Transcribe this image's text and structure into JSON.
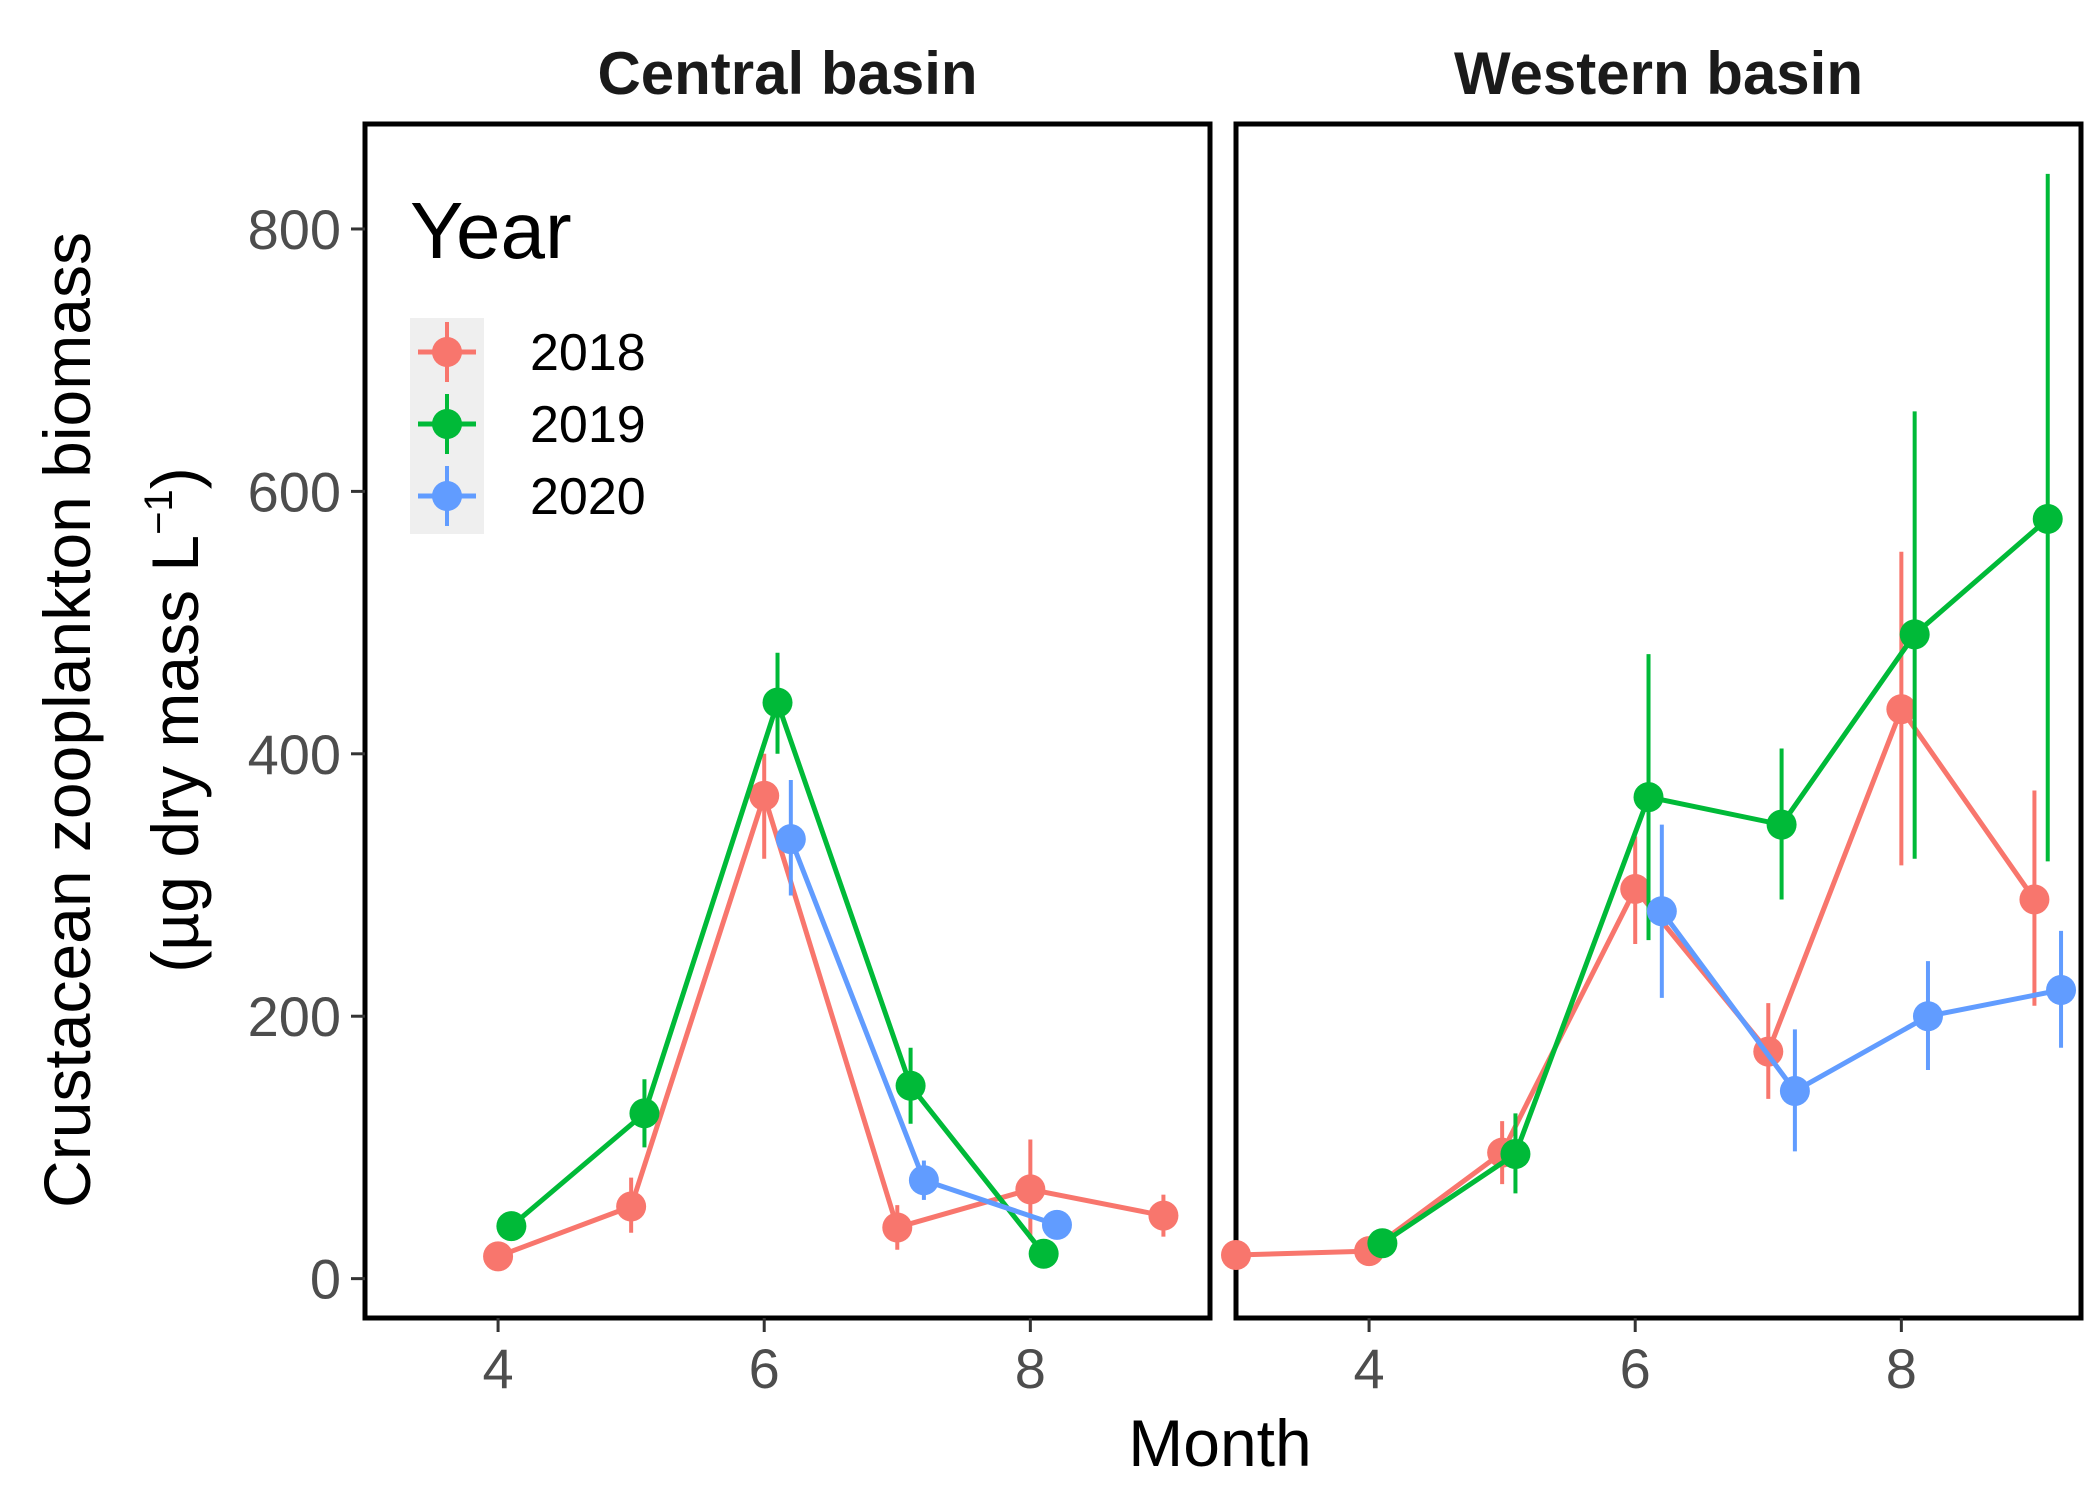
{
  "chart_data": {
    "type": "line",
    "xlabel": "Month",
    "ylabel_line1": "Crustacean zooplankton biomass",
    "ylabel_line2_prefix": "(µg dry mass L",
    "ylabel_line2_sup": "−1",
    "ylabel_line2_suffix": ")",
    "xlim": [
      3.0,
      9.35
    ],
    "ylim": [
      -30,
      880
    ],
    "x_ticks": [
      4,
      6,
      8
    ],
    "y_ticks": [
      0,
      200,
      400,
      600,
      800
    ],
    "legend": {
      "title": "Year",
      "placement": "top-left inside first panel"
    },
    "series_colors": {
      "2018": "#F8766D",
      "2019": "#00BA38",
      "2020": "#619CFF"
    },
    "panels": [
      {
        "title": "Central basin",
        "series": [
          {
            "name": "2018",
            "points": [
              {
                "x": 4.0,
                "y": 17,
                "lo": 17,
                "hi": 17
              },
              {
                "x": 5.0,
                "y": 55,
                "lo": 35,
                "hi": 77
              },
              {
                "x": 6.0,
                "y": 368,
                "lo": 320,
                "hi": 400
              },
              {
                "x": 7.0,
                "y": 39,
                "lo": 22,
                "hi": 56
              },
              {
                "x": 8.0,
                "y": 68,
                "lo": 30,
                "hi": 106
              },
              {
                "x": 9.0,
                "y": 48,
                "lo": 32,
                "hi": 64
              }
            ]
          },
          {
            "name": "2019",
            "points": [
              {
                "x": 4.1,
                "y": 40,
                "lo": 40,
                "hi": 40
              },
              {
                "x": 5.1,
                "y": 126,
                "lo": 100,
                "hi": 152
              },
              {
                "x": 6.1,
                "y": 439,
                "lo": 400,
                "hi": 477
              },
              {
                "x": 7.1,
                "y": 147,
                "lo": 118,
                "hi": 176
              },
              {
                "x": 8.1,
                "y": 19,
                "lo": 19,
                "hi": 19
              }
            ]
          },
          {
            "name": "2020",
            "points": [
              {
                "x": 6.2,
                "y": 335,
                "lo": 292,
                "hi": 380
              },
              {
                "x": 7.2,
                "y": 75,
                "lo": 60,
                "hi": 90
              },
              {
                "x": 8.2,
                "y": 41,
                "lo": 41,
                "hi": 41
              }
            ]
          }
        ]
      },
      {
        "title": "Western basin",
        "series": [
          {
            "name": "2018",
            "points": [
              {
                "x": 3.0,
                "y": 18,
                "lo": 18,
                "hi": 18
              },
              {
                "x": 4.0,
                "y": 21,
                "lo": 21,
                "hi": 21
              },
              {
                "x": 5.0,
                "y": 96,
                "lo": 72,
                "hi": 120
              },
              {
                "x": 6.0,
                "y": 297,
                "lo": 255,
                "hi": 337
              },
              {
                "x": 7.0,
                "y": 173,
                "lo": 137,
                "hi": 210
              },
              {
                "x": 8.0,
                "y": 434,
                "lo": 315,
                "hi": 554
              },
              {
                "x": 9.0,
                "y": 289,
                "lo": 208,
                "hi": 372
              }
            ]
          },
          {
            "name": "2019",
            "points": [
              {
                "x": 4.1,
                "y": 27,
                "lo": 27,
                "hi": 27
              },
              {
                "x": 5.1,
                "y": 95,
                "lo": 65,
                "hi": 126
              },
              {
                "x": 6.1,
                "y": 367,
                "lo": 258,
                "hi": 476
              },
              {
                "x": 7.1,
                "y": 346,
                "lo": 289,
                "hi": 404
              },
              {
                "x": 8.1,
                "y": 491,
                "lo": 320,
                "hi": 661
              },
              {
                "x": 9.1,
                "y": 579,
                "lo": 318,
                "hi": 842
              }
            ]
          },
          {
            "name": "2020",
            "points": [
              {
                "x": 6.2,
                "y": 280,
                "lo": 214,
                "hi": 346
              },
              {
                "x": 7.2,
                "y": 143,
                "lo": 97,
                "hi": 190
              },
              {
                "x": 8.2,
                "y": 200,
                "lo": 159,
                "hi": 242
              },
              {
                "x": 9.2,
                "y": 220,
                "lo": 176,
                "hi": 265
              }
            ]
          }
        ]
      }
    ]
  }
}
